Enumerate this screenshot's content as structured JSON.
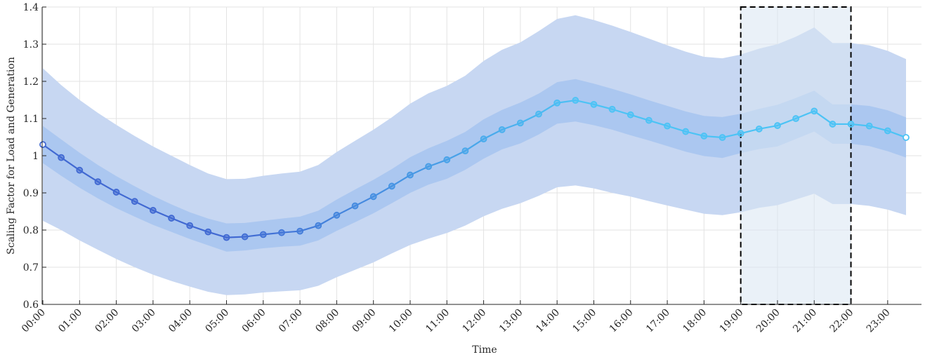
{
  "chart_data": {
    "type": "line",
    "xlabel": "Time",
    "ylabel": "Scaling Factor for Load and Generation",
    "ylim": [
      0.6,
      1.4
    ],
    "yticks": [
      "0.6",
      "0.7",
      "0.8",
      "0.9",
      "1",
      "1.1",
      "1.2",
      "1.3",
      "1.4"
    ],
    "xticks": [
      "00:00",
      "01:00",
      "02:00",
      "03:00",
      "04:00",
      "05:00",
      "06:00",
      "07:00",
      "08:00",
      "09:00",
      "10:00",
      "11:00",
      "12:00",
      "13:00",
      "14:00",
      "15:00",
      "16:00",
      "17:00",
      "18:00",
      "19:00",
      "20:00",
      "21:00",
      "22:00",
      "23:00"
    ],
    "grid": true,
    "x_hours": [
      0,
      0.5,
      1,
      1.5,
      2,
      2.5,
      3,
      3.5,
      4,
      4.5,
      5,
      5.5,
      6,
      6.5,
      7,
      7.5,
      8,
      8.5,
      9,
      9.5,
      10,
      10.5,
      11,
      11.5,
      12,
      12.5,
      13,
      13.5,
      14,
      14.5,
      15,
      15.5,
      16,
      16.5,
      17,
      17.5,
      18,
      18.5,
      19,
      19.5,
      20,
      20.5,
      21,
      21.5,
      22,
      22.5,
      23,
      23.5
    ],
    "series": [
      {
        "mean": [
          1.03,
          0.995,
          0.961,
          0.93,
          0.902,
          0.877,
          0.853,
          0.832,
          0.812,
          0.795,
          0.78,
          0.782,
          0.788,
          0.793,
          0.797,
          0.812,
          0.84,
          0.865,
          0.89,
          0.918,
          0.948,
          0.971,
          0.989,
          1.013,
          1.045,
          1.07,
          1.088,
          1.112,
          1.142,
          1.149,
          1.138,
          1.125,
          1.11,
          1.095,
          1.08,
          1.065,
          1.053,
          1.049,
          1.06,
          1.072,
          1.081,
          1.1,
          1.12,
          1.085,
          1.085,
          1.08,
          1.067,
          1.049
        ],
        "inner_upper": [
          1.08,
          1.044,
          1.008,
          0.975,
          0.945,
          0.918,
          0.892,
          0.869,
          0.848,
          0.831,
          0.818,
          0.819,
          0.825,
          0.831,
          0.836,
          0.852,
          0.882,
          0.909,
          0.935,
          0.964,
          0.996,
          1.02,
          1.04,
          1.064,
          1.098,
          1.123,
          1.143,
          1.167,
          1.198,
          1.206,
          1.194,
          1.18,
          1.165,
          1.149,
          1.134,
          1.119,
          1.107,
          1.104,
          1.113,
          1.126,
          1.137,
          1.155,
          1.175,
          1.138,
          1.138,
          1.134,
          1.122,
          1.103
        ],
        "inner_lower": [
          0.98,
          0.946,
          0.914,
          0.885,
          0.859,
          0.836,
          0.814,
          0.795,
          0.776,
          0.759,
          0.742,
          0.745,
          0.751,
          0.755,
          0.758,
          0.772,
          0.798,
          0.821,
          0.845,
          0.872,
          0.9,
          0.922,
          0.938,
          0.962,
          0.992,
          1.017,
          1.033,
          1.057,
          1.086,
          1.092,
          1.082,
          1.07,
          1.055,
          1.041,
          1.026,
          1.011,
          0.999,
          0.994,
          1.007,
          1.018,
          1.025,
          1.045,
          1.065,
          1.032,
          1.032,
          1.026,
          1.012,
          0.995
        ],
        "outer_upper": [
          1.235,
          1.19,
          1.15,
          1.115,
          1.083,
          1.053,
          1.025,
          1.0,
          0.975,
          0.952,
          0.937,
          0.938,
          0.946,
          0.952,
          0.957,
          0.975,
          1.01,
          1.04,
          1.07,
          1.103,
          1.14,
          1.168,
          1.188,
          1.215,
          1.255,
          1.285,
          1.305,
          1.335,
          1.368,
          1.378,
          1.365,
          1.35,
          1.333,
          1.315,
          1.297,
          1.28,
          1.266,
          1.262,
          1.272,
          1.288,
          1.3,
          1.32,
          1.345,
          1.303,
          1.303,
          1.297,
          1.282,
          1.26
        ],
        "outer_lower": [
          0.825,
          0.8,
          0.772,
          0.747,
          0.722,
          0.7,
          0.68,
          0.663,
          0.648,
          0.634,
          0.625,
          0.627,
          0.632,
          0.635,
          0.638,
          0.65,
          0.673,
          0.693,
          0.713,
          0.737,
          0.76,
          0.777,
          0.792,
          0.812,
          0.837,
          0.857,
          0.872,
          0.892,
          0.915,
          0.92,
          0.912,
          0.9,
          0.89,
          0.878,
          0.866,
          0.855,
          0.844,
          0.84,
          0.848,
          0.86,
          0.867,
          0.882,
          0.898,
          0.87,
          0.87,
          0.865,
          0.855,
          0.84
        ]
      }
    ],
    "highlight": {
      "x_start": 19,
      "x_end": 22,
      "y_start": 0.6,
      "y_end": 1.4
    },
    "colors": {
      "outer_band": "#c7d7f2",
      "inner_band": "#a6c4f0",
      "line_start": "#4169d2",
      "line_end": "#4cc3f5",
      "highlight_fill": "#d9e5f2",
      "highlight_border": "#000000",
      "grid": "#e3e3e3",
      "axis": "#262626"
    }
  }
}
